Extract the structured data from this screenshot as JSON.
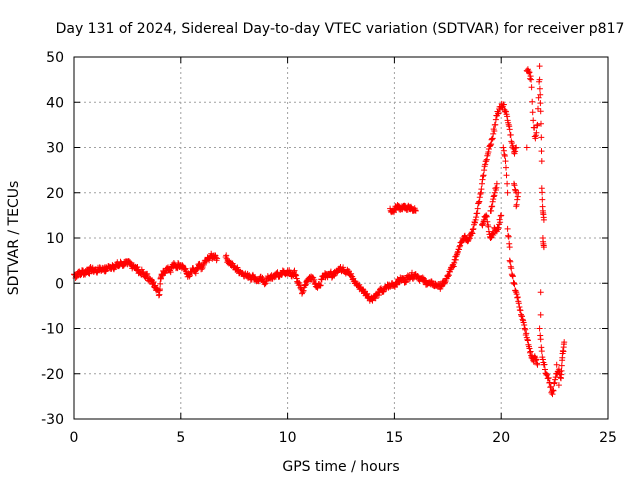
{
  "chart_data": {
    "type": "scatter",
    "title": "Day 131 of 2024, Sidereal Day-to-day VTEC variation (SDTVAR) for receiver p817",
    "xlabel": "GPS time / hours",
    "ylabel": "SDTVAR / TECUs",
    "xlim": [
      0,
      25
    ],
    "ylim": [
      -30,
      50
    ],
    "xticks": [
      0,
      5,
      10,
      15,
      20,
      25
    ],
    "yticks": [
      -30,
      -20,
      -10,
      0,
      10,
      20,
      30,
      40,
      50
    ],
    "grid": true,
    "marker": "+",
    "marker_color": "#ff0000",
    "grid_color": "#a0a0a0",
    "series": [
      {
        "name": "SDTVAR",
        "points": [
          [
            0.0,
            2.0
          ],
          [
            0.1,
            1.5
          ],
          [
            0.2,
            2.5
          ],
          [
            0.3,
            1.8
          ],
          [
            0.4,
            2.8
          ],
          [
            0.5,
            2.0
          ],
          [
            0.6,
            3.0
          ],
          [
            0.7,
            2.5
          ],
          [
            0.8,
            3.2
          ],
          [
            0.9,
            2.8
          ],
          [
            1.0,
            3.0
          ],
          [
            1.1,
            2.6
          ],
          [
            1.2,
            3.5
          ],
          [
            1.3,
            3.0
          ],
          [
            1.4,
            3.3
          ],
          [
            1.5,
            2.8
          ],
          [
            1.6,
            3.8
          ],
          [
            1.7,
            3.2
          ],
          [
            1.8,
            4.0
          ],
          [
            1.9,
            3.5
          ],
          [
            2.0,
            4.2
          ],
          [
            2.1,
            3.8
          ],
          [
            2.2,
            4.5
          ],
          [
            2.3,
            4.0
          ],
          [
            2.4,
            4.8
          ],
          [
            2.5,
            4.2
          ],
          [
            2.6,
            4.5
          ],
          [
            2.7,
            3.8
          ],
          [
            2.8,
            4.0
          ],
          [
            2.9,
            3.2
          ],
          [
            3.0,
            3.0
          ],
          [
            3.1,
            2.2
          ],
          [
            3.2,
            2.5
          ],
          [
            3.3,
            1.5
          ],
          [
            3.4,
            1.8
          ],
          [
            3.5,
            1.0
          ],
          [
            3.6,
            0.5
          ],
          [
            3.7,
            0.0
          ],
          [
            3.8,
            -0.5
          ],
          [
            3.9,
            -1.5
          ],
          [
            4.0,
            -2.5
          ],
          [
            4.05,
            1.0
          ],
          [
            4.1,
            2.0
          ],
          [
            4.2,
            2.5
          ],
          [
            4.3,
            3.0
          ],
          [
            4.4,
            3.5
          ],
          [
            4.5,
            2.8
          ],
          [
            4.6,
            3.8
          ],
          [
            4.7,
            4.0
          ],
          [
            4.8,
            3.5
          ],
          [
            4.9,
            4.2
          ],
          [
            5.0,
            4.0
          ],
          [
            5.1,
            3.8
          ],
          [
            5.2,
            3.0
          ],
          [
            5.3,
            2.0
          ],
          [
            5.4,
            1.5
          ],
          [
            5.5,
            2.5
          ],
          [
            5.6,
            3.0
          ],
          [
            5.7,
            2.2
          ],
          [
            5.8,
            3.5
          ],
          [
            5.9,
            4.0
          ],
          [
            6.0,
            3.2
          ],
          [
            6.1,
            4.5
          ],
          [
            6.2,
            5.0
          ],
          [
            6.3,
            5.5
          ],
          [
            6.4,
            6.0
          ],
          [
            6.5,
            5.8
          ],
          [
            6.6,
            6.2
          ],
          [
            6.7,
            5.5
          ],
          [
            7.1,
            5.8
          ],
          [
            7.2,
            5.0
          ],
          [
            7.3,
            4.5
          ],
          [
            7.4,
            4.0
          ],
          [
            7.5,
            3.5
          ],
          [
            7.6,
            3.2
          ],
          [
            7.7,
            2.8
          ],
          [
            7.8,
            2.5
          ],
          [
            7.9,
            2.2
          ],
          [
            8.0,
            2.0
          ],
          [
            8.1,
            1.5
          ],
          [
            8.2,
            1.8
          ],
          [
            8.3,
            1.2
          ],
          [
            8.4,
            1.5
          ],
          [
            8.5,
            1.0
          ],
          [
            8.6,
            0.5
          ],
          [
            8.7,
            1.0
          ],
          [
            8.8,
            0.8
          ],
          [
            8.9,
            0.2
          ],
          [
            9.0,
            0.5
          ],
          [
            9.1,
            1.2
          ],
          [
            9.2,
            1.5
          ],
          [
            9.3,
            1.0
          ],
          [
            9.4,
            1.8
          ],
          [
            9.5,
            2.0
          ],
          [
            9.6,
            1.5
          ],
          [
            9.7,
            2.2
          ],
          [
            9.8,
            2.5
          ],
          [
            9.9,
            2.0
          ],
          [
            10.0,
            2.8
          ],
          [
            10.1,
            2.2
          ],
          [
            10.2,
            1.5
          ],
          [
            10.3,
            2.5
          ],
          [
            10.4,
            1.8
          ],
          [
            10.5,
            0.0
          ],
          [
            10.6,
            -1.0
          ],
          [
            10.7,
            -2.0
          ],
          [
            10.8,
            -0.5
          ],
          [
            10.9,
            0.5
          ],
          [
            11.0,
            1.0
          ],
          [
            11.1,
            1.5
          ],
          [
            11.2,
            1.2
          ],
          [
            11.3,
            0.0
          ],
          [
            11.4,
            -1.0
          ],
          [
            11.5,
            -0.5
          ],
          [
            11.6,
            0.8
          ],
          [
            11.7,
            1.5
          ],
          [
            11.8,
            2.0
          ],
          [
            11.9,
            1.8
          ],
          [
            12.0,
            2.2
          ],
          [
            12.1,
            1.5
          ],
          [
            12.2,
            2.5
          ],
          [
            12.3,
            2.8
          ],
          [
            12.4,
            3.2
          ],
          [
            12.5,
            3.0
          ],
          [
            12.6,
            3.5
          ],
          [
            12.7,
            2.5
          ],
          [
            12.8,
            3.0
          ],
          [
            12.9,
            2.0
          ],
          [
            13.0,
            1.5
          ],
          [
            13.1,
            0.5
          ],
          [
            13.2,
            0.0
          ],
          [
            13.3,
            -0.5
          ],
          [
            13.4,
            -1.0
          ],
          [
            13.5,
            -1.5
          ],
          [
            13.6,
            -2.0
          ],
          [
            13.7,
            -2.5
          ],
          [
            13.8,
            -3.0
          ],
          [
            13.9,
            -3.5
          ],
          [
            14.0,
            -3.2
          ],
          [
            14.1,
            -2.8
          ],
          [
            14.2,
            -2.5
          ],
          [
            14.3,
            -2.0
          ],
          [
            14.4,
            -1.5
          ],
          [
            14.5,
            -1.8
          ],
          [
            14.6,
            -1.0
          ],
          [
            14.7,
            -0.5
          ],
          [
            14.8,
            -0.8
          ],
          [
            14.9,
            0.0
          ],
          [
            15.0,
            -0.5
          ],
          [
            15.1,
            0.2
          ],
          [
            15.2,
            0.5
          ],
          [
            15.3,
            0.8
          ],
          [
            15.4,
            1.0
          ],
          [
            15.5,
            0.5
          ],
          [
            15.6,
            1.2
          ],
          [
            15.7,
            1.5
          ],
          [
            15.8,
            1.8
          ],
          [
            15.9,
            1.5
          ],
          [
            16.0,
            2.0
          ],
          [
            16.1,
            1.5
          ],
          [
            16.2,
            1.0
          ],
          [
            16.3,
            0.8
          ],
          [
            16.4,
            0.5
          ],
          [
            16.5,
            0.2
          ],
          [
            16.6,
            0.0
          ],
          [
            16.7,
            -0.2
          ],
          [
            16.8,
            0.0
          ],
          [
            16.9,
            -0.5
          ],
          [
            17.0,
            -0.3
          ],
          [
            17.1,
            -0.8
          ],
          [
            17.2,
            -0.5
          ],
          [
            17.3,
            0.0
          ],
          [
            17.4,
            0.5
          ],
          [
            17.5,
            1.5
          ],
          [
            17.6,
            2.5
          ],
          [
            17.7,
            3.5
          ],
          [
            17.8,
            4.5
          ],
          [
            17.9,
            6.0
          ],
          [
            18.0,
            7.5
          ],
          [
            18.1,
            9.0
          ],
          [
            18.2,
            10.0
          ],
          [
            18.3,
            10.5
          ],
          [
            18.4,
            9.5
          ],
          [
            18.5,
            10.2
          ],
          [
            18.6,
            11.0
          ],
          [
            18.7,
            12.0
          ],
          [
            18.8,
            14.0
          ],
          [
            18.9,
            16.5
          ],
          [
            19.0,
            19.0
          ],
          [
            19.1,
            22.0
          ],
          [
            19.2,
            25.0
          ],
          [
            19.3,
            27.0
          ],
          [
            19.4,
            29.0
          ],
          [
            19.5,
            30.5
          ],
          [
            19.6,
            32.0
          ],
          [
            19.7,
            35.0
          ],
          [
            19.8,
            37.0
          ],
          [
            19.9,
            38.5
          ],
          [
            20.0,
            39.0
          ],
          [
            20.1,
            39.5
          ],
          [
            20.2,
            38.0
          ],
          [
            20.3,
            36.0
          ],
          [
            20.4,
            34.0
          ],
          [
            20.5,
            31.0
          ],
          [
            20.6,
            29.0
          ],
          [
            20.7,
            30.0
          ],
          [
            19.1,
            13.0
          ],
          [
            19.2,
            14.0
          ],
          [
            19.3,
            15.0
          ],
          [
            19.4,
            12.5
          ],
          [
            19.5,
            10.0
          ],
          [
            19.6,
            11.0
          ],
          [
            19.7,
            12.0
          ],
          [
            19.8,
            11.5
          ],
          [
            19.9,
            13.0
          ],
          [
            20.0,
            15.0
          ],
          [
            19.5,
            16.0
          ],
          [
            19.6,
            18.0
          ],
          [
            19.7,
            20.0
          ],
          [
            19.8,
            22.0
          ],
          [
            20.1,
            30.0
          ],
          [
            20.2,
            27.0
          ],
          [
            20.3,
            20.0
          ],
          [
            20.3,
            12.0
          ],
          [
            20.4,
            8.0
          ],
          [
            20.4,
            5.0
          ],
          [
            20.5,
            2.0
          ],
          [
            20.6,
            0.0
          ],
          [
            20.7,
            -2.0
          ],
          [
            20.8,
            -4.0
          ],
          [
            20.9,
            -6.0
          ],
          [
            21.0,
            -8.0
          ],
          [
            21.1,
            -10.0
          ],
          [
            21.2,
            -12.0
          ],
          [
            21.3,
            -14.0
          ],
          [
            21.4,
            -16.0
          ],
          [
            21.5,
            -17.0
          ],
          [
            21.6,
            -16.5
          ],
          [
            21.7,
            -18.0
          ],
          [
            20.6,
            22.0
          ],
          [
            20.7,
            20.0
          ],
          [
            20.7,
            17.0
          ],
          [
            20.8,
            20.0
          ],
          [
            21.2,
            30.0
          ],
          [
            21.2,
            47.0
          ],
          [
            21.3,
            46.5
          ],
          [
            21.4,
            45.0
          ],
          [
            21.5,
            36.0
          ],
          [
            21.6,
            32.0
          ],
          [
            21.7,
            35.0
          ],
          [
            21.8,
            48.0
          ],
          [
            21.8,
            45.0
          ],
          [
            21.85,
            38.0
          ],
          [
            21.9,
            27.0
          ],
          [
            21.9,
            21.0
          ],
          [
            21.95,
            16.0
          ],
          [
            22.0,
            14.0
          ],
          [
            21.95,
            10.0
          ],
          [
            22.0,
            8.0
          ],
          [
            21.85,
            -2.0
          ],
          [
            21.85,
            -7.0
          ],
          [
            21.8,
            -10.0
          ],
          [
            21.9,
            -15.0
          ],
          [
            22.0,
            -18.0
          ],
          [
            22.1,
            -20.0
          ],
          [
            22.2,
            -21.0
          ],
          [
            22.3,
            -23.0
          ],
          [
            22.4,
            -24.5
          ],
          [
            22.5,
            -22.0
          ],
          [
            22.6,
            -20.0
          ],
          [
            22.7,
            -19.0
          ],
          [
            22.8,
            -21.0
          ],
          [
            22.85,
            -17.0
          ],
          [
            22.9,
            -15.0
          ],
          [
            22.95,
            -13.0
          ],
          [
            22.7,
            -22.5
          ],
          [
            22.6,
            -18.0
          ]
        ],
        "segment_15_to_16": [
          [
            14.8,
            16.5
          ],
          [
            14.9,
            15.8
          ],
          [
            15.0,
            16.2
          ],
          [
            15.1,
            16.8
          ],
          [
            15.2,
            17.0
          ],
          [
            15.3,
            16.6
          ],
          [
            15.4,
            16.9
          ],
          [
            15.5,
            16.5
          ],
          [
            15.6,
            16.8
          ],
          [
            15.7,
            16.4
          ],
          [
            15.8,
            16.6
          ],
          [
            15.9,
            16.2
          ],
          [
            16.0,
            16.0
          ]
        ]
      }
    ]
  }
}
